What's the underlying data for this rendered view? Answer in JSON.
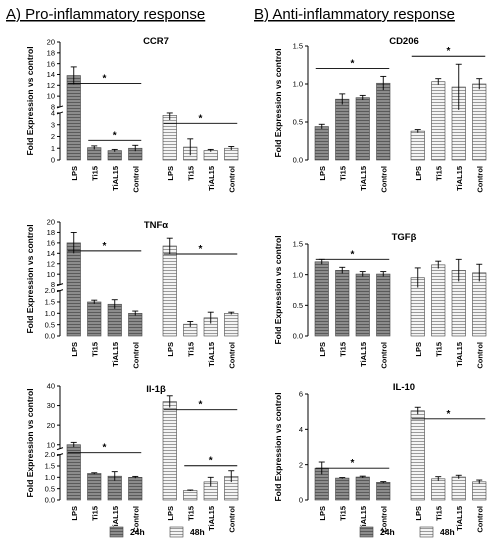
{
  "section_titles": [
    "A) Pro-inflammatory response",
    "B) Anti-inflammatory response"
  ],
  "ylabel": "Fold Expression vs control",
  "legend": {
    "labels": [
      "24h",
      "48h"
    ],
    "position": "bottom"
  },
  "colors": {
    "bar_24h": "#8c8c8c",
    "bar_48h": "#f4f4f4",
    "axis": "#000000"
  },
  "chart_data": [
    {
      "type": "bar",
      "title": "CCR7",
      "ylabel": "Fold Expression vs control",
      "categories": [
        "LPS",
        "Ti15",
        "TiAL15",
        "Control"
      ],
      "series": [
        {
          "name": "24h",
          "values": [
            13.8,
            1.05,
            0.8,
            1.0
          ],
          "errors": [
            1.6,
            0.15,
            0.1,
            0.25
          ]
        },
        {
          "name": "48h",
          "values": [
            3.8,
            1.1,
            0.8,
            1.0
          ],
          "errors": [
            0.4,
            0.7,
            0.1,
            0.15
          ]
        }
      ],
      "axis_breaks": [
        {
          "range": [
            0,
            4
          ],
          "ticks": [
            "0",
            "1",
            "2",
            "3",
            "4"
          ]
        },
        {
          "range": [
            8,
            20
          ],
          "ticks": [
            "8",
            "10",
            "12",
            "14",
            "16",
            "18",
            "20"
          ]
        }
      ],
      "significance": [
        {
          "series": "24h",
          "from": "LPS",
          "to": "Control",
          "label": "*"
        },
        {
          "series": "24h",
          "from": "Ti15",
          "to": "Control",
          "label": "*"
        },
        {
          "series": "48h",
          "from": "LPS",
          "to": "Control",
          "label": "*"
        }
      ]
    },
    {
      "type": "bar",
      "title": "CD206",
      "ylabel": "Fold Expression vs control",
      "categories": [
        "LPS",
        "Ti15",
        "TiAL15",
        "Control"
      ],
      "series": [
        {
          "name": "24h",
          "values": [
            0.44,
            0.8,
            0.82,
            1.01
          ],
          "errors": [
            0.03,
            0.07,
            0.03,
            0.09
          ]
        },
        {
          "name": "48h",
          "values": [
            0.38,
            1.03,
            0.96,
            1.0
          ],
          "errors": [
            0.02,
            0.04,
            0.3,
            0.07
          ]
        }
      ],
      "ylim": [
        0,
        1.5
      ],
      "yticks": [
        "0.0",
        "0.5",
        "1.0",
        "1.5"
      ],
      "significance": [
        {
          "series": "24h",
          "from": "LPS",
          "to": "Control",
          "label": "*"
        },
        {
          "series": "48h",
          "from": "LPS",
          "to": "Control",
          "label": "*"
        }
      ]
    },
    {
      "type": "bar",
      "title": "TNFα",
      "ylabel": "Fold Expression vs control",
      "categories": [
        "LPS",
        "Ti15",
        "TiAL15",
        "Control"
      ],
      "series": [
        {
          "name": "24h",
          "values": [
            16.0,
            1.5,
            1.4,
            1.0
          ],
          "errors": [
            2.0,
            0.08,
            0.2,
            0.1
          ]
        },
        {
          "name": "48h",
          "values": [
            15.4,
            0.52,
            0.8,
            1.0
          ],
          "errors": [
            1.5,
            0.12,
            0.25,
            0.05
          ]
        }
      ],
      "axis_breaks": [
        {
          "range": [
            0,
            2.0
          ],
          "ticks": [
            "0.0",
            "0.5",
            "1.0",
            "1.5",
            "2.0"
          ]
        },
        {
          "range": [
            8,
            20
          ],
          "ticks": [
            "8",
            "10",
            "12",
            "14",
            "16",
            "18",
            "20"
          ]
        }
      ],
      "significance": [
        {
          "series": "24h",
          "from": "LPS",
          "to": "Control",
          "label": "*"
        },
        {
          "series": "48h",
          "from": "LPS",
          "to": "Control",
          "label": "*"
        }
      ]
    },
    {
      "type": "bar",
      "title": "TGFβ",
      "ylabel": "Fold Expression vs control",
      "categories": [
        "LPS",
        "Ti15",
        "TiAL15",
        "Control"
      ],
      "series": [
        {
          "name": "24h",
          "values": [
            1.21,
            1.07,
            1.01,
            1.01
          ],
          "errors": [
            0.04,
            0.05,
            0.04,
            0.04
          ]
        },
        {
          "name": "48h",
          "values": [
            0.95,
            1.16,
            1.07,
            1.03
          ],
          "errors": [
            0.16,
            0.06,
            0.18,
            0.14
          ]
        }
      ],
      "ylim": [
        0,
        1.5
      ],
      "yticks": [
        "0.0",
        "0.5",
        "1.0",
        "1.5"
      ],
      "significance": [
        {
          "series": "24h",
          "from": "LPS",
          "to": "Control",
          "label": "*"
        }
      ]
    },
    {
      "type": "bar",
      "title": "Il-1β",
      "ylabel": "Fold Expression vs control",
      "categories": [
        "LPS",
        "Ti15",
        "TiAL15",
        "Control"
      ],
      "series": [
        {
          "name": "24h",
          "values": [
            10.0,
            1.17,
            1.05,
            1.0
          ],
          "errors": [
            1.2,
            0.03,
            0.2,
            0.04
          ]
        },
        {
          "name": "48h",
          "values": [
            32.0,
            0.42,
            0.8,
            1.04
          ],
          "errors": [
            3.0,
            0.02,
            0.2,
            0.25
          ]
        }
      ],
      "axis_breaks": [
        {
          "range": [
            0,
            2.0
          ],
          "ticks": [
            "0.0",
            "0.5",
            "1.0",
            "1.5",
            "2.0"
          ]
        },
        {
          "range": [
            8,
            40
          ],
          "ticks": [
            "10",
            "20",
            "30",
            "40"
          ]
        }
      ],
      "significance": [
        {
          "series": "24h",
          "from": "LPS",
          "to": "Control",
          "label": "*"
        },
        {
          "series": "48h",
          "from": "LPS",
          "to": "Control",
          "label": "*"
        },
        {
          "series": "48h",
          "from": "Ti15",
          "to": "Control",
          "label": "*"
        }
      ]
    },
    {
      "type": "bar",
      "title": "IL-10",
      "ylabel": "Fold Expression vs control",
      "categories": [
        "LPS",
        "Ti15",
        "TiAL15",
        "Control"
      ],
      "series": [
        {
          "name": "24h",
          "values": [
            1.8,
            1.24,
            1.3,
            1.0
          ],
          "errors": [
            0.35,
            0.03,
            0.05,
            0.04
          ]
        },
        {
          "name": "48h",
          "values": [
            5.05,
            1.2,
            1.3,
            1.03
          ],
          "errors": [
            0.2,
            0.12,
            0.1,
            0.1
          ]
        }
      ],
      "ylim": [
        0,
        6
      ],
      "yticks": [
        "0",
        "2",
        "4",
        "6"
      ],
      "significance": [
        {
          "series": "24h",
          "from": "LPS",
          "to": "Control",
          "label": "*"
        },
        {
          "series": "48h",
          "from": "LPS",
          "to": "Control",
          "label": "*"
        }
      ]
    }
  ]
}
